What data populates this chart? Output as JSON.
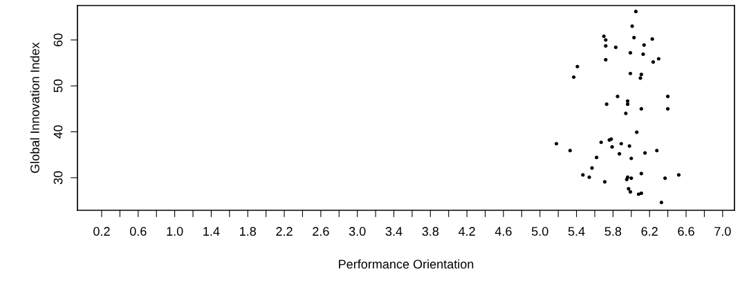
{
  "chart_data": {
    "type": "scatter",
    "xlabel": "Performance Orientation",
    "ylabel": "Global Innovation Index",
    "x": [
      6.05,
      6.01,
      5.7,
      5.72,
      6.03,
      6.23,
      5.72,
      5.83,
      6.14,
      5.99,
      6.13,
      5.72,
      6.24,
      6.3,
      5.41,
      5.37,
      5.99,
      6.11,
      6.1,
      5.85,
      6.4,
      5.73,
      5.96,
      5.96,
      6.11,
      6.4,
      5.94,
      6.06,
      5.18,
      5.33,
      5.67,
      5.76,
      5.78,
      5.79,
      5.89,
      5.98,
      5.87,
      6.15,
      6.28,
      6.0,
      5.62,
      5.57,
      5.47,
      5.54,
      5.71,
      5.96,
      5.95,
      6.0,
      6.11,
      6.37,
      6.52,
      5.97,
      5.99,
      6.08,
      6.11,
      6.33
    ],
    "values": [
      66.2,
      63.0,
      60.8,
      60.0,
      60.5,
      60.2,
      58.7,
      58.4,
      58.9,
      57.2,
      56.9,
      55.7,
      55.2,
      55.9,
      54.2,
      51.9,
      52.7,
      52.5,
      51.7,
      47.7,
      47.7,
      46.0,
      46.7,
      46.0,
      45.0,
      45.0,
      44.0,
      39.9,
      37.4,
      35.9,
      37.7,
      38.2,
      38.4,
      36.7,
      37.4,
      36.9,
      35.2,
      35.4,
      35.9,
      34.2,
      34.4,
      32.1,
      30.6,
      30.1,
      29.1,
      30.1,
      29.6,
      29.9,
      30.9,
      29.9,
      30.6,
      27.6,
      26.9,
      26.4,
      26.6,
      24.6
    ],
    "color": "#000000",
    "marker": "circle",
    "grid": false,
    "legend": false,
    "xlim": [
      -0.065,
      7.13
    ],
    "ylim": [
      22.9,
      67.5
    ],
    "xticks": [
      0.2,
      {
        "value": 0.4,
        "label": null
      },
      0.6,
      {
        "value": 0.8,
        "label": null
      },
      "1.0",
      {
        "value": 1.2,
        "label": null
      },
      1.4,
      {
        "value": 1.6,
        "label": null
      },
      1.8,
      {
        "value": 2.0,
        "label": null
      },
      2.2,
      {
        "value": 2.4,
        "label": null
      },
      2.6,
      {
        "value": 2.8,
        "label": null
      },
      {
        "value": 3.0,
        "label": "3.0"
      },
      {
        "value": 3.2,
        "label": null
      },
      3.4,
      {
        "value": 3.6,
        "label": null
      },
      3.8,
      {
        "value": 4.0,
        "label": null
      },
      4.2,
      {
        "value": 4.4,
        "label": null
      },
      4.6,
      {
        "value": 4.8,
        "label": null
      },
      {
        "value": 5.0,
        "label": "5.0"
      },
      {
        "value": 5.2,
        "label": null
      },
      5.4,
      {
        "value": 5.6,
        "label": null
      },
      5.8,
      {
        "value": 6.0,
        "label": null
      },
      6.2,
      {
        "value": 6.4,
        "label": null
      },
      6.6,
      {
        "value": 6.8,
        "label": null
      },
      {
        "value": 7.0,
        "label": "7.0"
      }
    ],
    "yticks": [
      30,
      40,
      50,
      60
    ]
  }
}
